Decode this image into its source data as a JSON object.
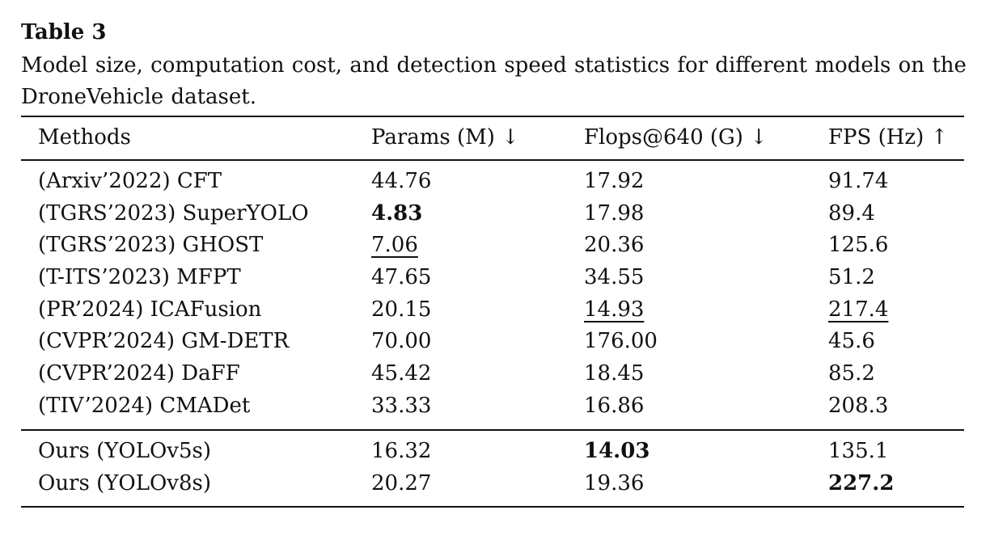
{
  "caption": {
    "label": "Table 3",
    "text": "Model size, computation cost, and detection speed statistics for different models on the DroneVehicle dataset."
  },
  "table": {
    "headers": [
      "Methods",
      "Params (M) ↓",
      "Flops@640 (G) ↓",
      "FPS (Hz) ↑"
    ],
    "rows": [
      {
        "method": "(Arxiv’2022) CFT",
        "params": "44.76",
        "flops": "17.92",
        "fps": "91.74"
      },
      {
        "method": "(TGRS’2023) SuperYOLO",
        "params": "4.83",
        "flops": "17.98",
        "fps": "89.4"
      },
      {
        "method": "(TGRS’2023) GHOST",
        "params": "7.06",
        "flops": "20.36",
        "fps": "125.6"
      },
      {
        "method": "(T-ITS’2023) MFPT",
        "params": "47.65",
        "flops": "34.55",
        "fps": "51.2"
      },
      {
        "method": "(PR’2024) ICAFusion",
        "params": "20.15",
        "flops": "14.93",
        "fps": "217.4"
      },
      {
        "method": "(CVPR’2024) GM-DETR",
        "params": "70.00",
        "flops": "176.00",
        "fps": "45.6"
      },
      {
        "method": "(CVPR’2024) DaFF",
        "params": "45.42",
        "flops": "18.45",
        "fps": "85.2"
      },
      {
        "method": "(TIV’2024) CMADet",
        "params": "33.33",
        "flops": "16.86",
        "fps": "208.3"
      },
      {
        "method": "Ours (YOLOv5s)",
        "params": "16.32",
        "flops": "14.03",
        "fps": "135.1"
      },
      {
        "method": "Ours (YOLOv8s)",
        "params": "20.27",
        "flops": "19.36",
        "fps": "227.2"
      }
    ]
  }
}
